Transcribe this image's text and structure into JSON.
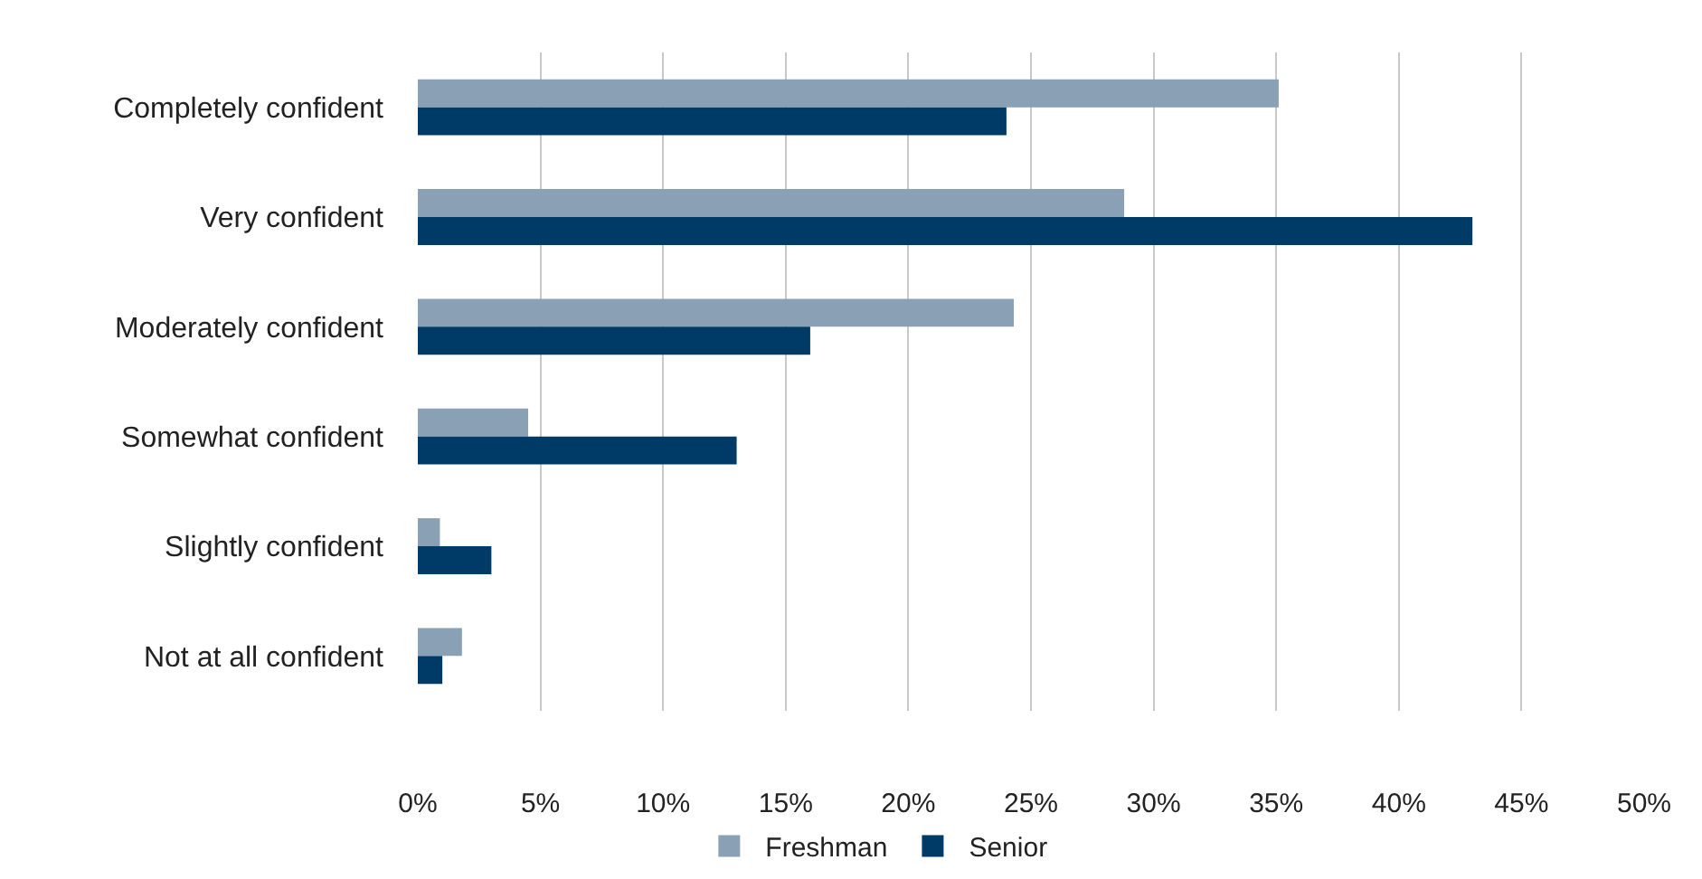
{
  "chart_data": {
    "type": "bar",
    "orientation": "horizontal",
    "categories": [
      "Completely confident",
      "Very confident",
      "Moderately confident",
      "Somewhat confident",
      "Slightly confident",
      "Not at all confident"
    ],
    "series": [
      {
        "name": "Freshman",
        "color": "#8aa0b4",
        "values": [
          35.1,
          28.8,
          24.3,
          4.5,
          0.9,
          1.8
        ]
      },
      {
        "name": "Senior",
        "color": "#003a66",
        "values": [
          24.0,
          43.0,
          16.0,
          13.0,
          3.0,
          1.0
        ]
      }
    ],
    "xlim": [
      0,
      50
    ],
    "xticks": [
      {
        "value": 0,
        "label": "0%"
      },
      {
        "value": 5,
        "label": "5%"
      },
      {
        "value": 10,
        "label": "10%"
      },
      {
        "value": 15,
        "label": "15%"
      },
      {
        "value": 20,
        "label": "20%"
      },
      {
        "value": 25,
        "label": "25%"
      },
      {
        "value": 30,
        "label": "30%"
      },
      {
        "value": 35,
        "label": "35%"
      },
      {
        "value": 40,
        "label": "40%"
      },
      {
        "value": 45,
        "label": "45%"
      },
      {
        "value": 50,
        "label": "50%"
      }
    ],
    "grid": "x",
    "legend": "bottom"
  }
}
